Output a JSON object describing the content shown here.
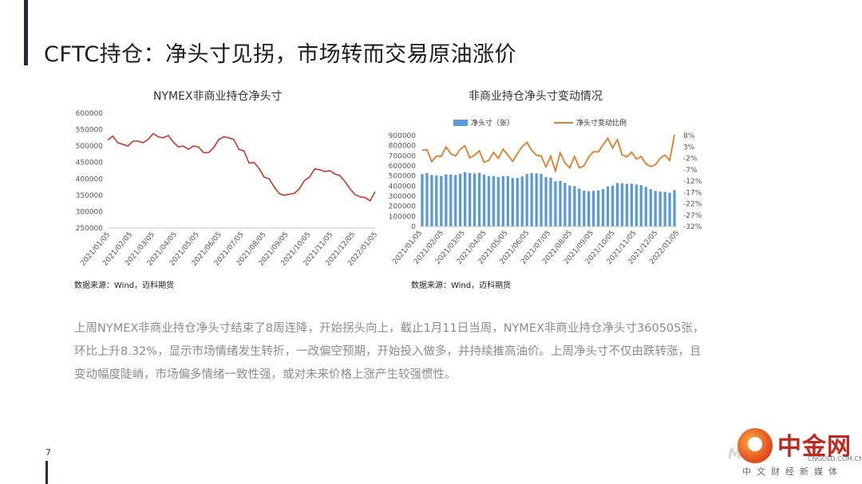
{
  "slide": {
    "title": "CFTC持仓：净头寸见拐，市场转而交易原油涨价",
    "page_number": "7",
    "body_text": "上周NYMEX非商业持仓净头寸结束了8周连降，开始拐头向上，截止1月11日当周，NYMEX非商业持仓净头寸360505张，环比上升8.32%，显示市场情绪发生转折，一改偏空预期，开始投入做多，并持续推高油价。上周净头寸不仅由跌转涨，且变动幅度陡峭，市场偏多情绪一致性强，或对未来价格上涨产生较强惯性。"
  },
  "logo": {
    "name": "中金网",
    "domain": "CNGOLD.COM.CN",
    "slogan": "中文财经新媒体",
    "ghost_text": "M"
  },
  "colors": {
    "line_red": "#c0392b",
    "bar_blue": "#5b9bd5",
    "line_orange": "#e07b2a",
    "accent": "#1f2a44"
  },
  "x_tick_labels": [
    "2021/01/05",
    "2021/02/05",
    "2021/03/05",
    "2021/04/05",
    "2021/05/05",
    "2021/06/05",
    "2021/07/05",
    "2021/08/05",
    "2021/09/05",
    "2021/10/05",
    "2021/11/05",
    "2021/12/05",
    "2022/01/05"
  ],
  "chart_data": [
    {
      "type": "line",
      "title": "NYMEX非商业持仓净头寸",
      "source": "数据来源：Wind，迈科期货",
      "ylim": [
        250000,
        600000
      ],
      "y_ticks": [
        "600000",
        "550000",
        "500000",
        "450000",
        "400000",
        "350000",
        "300000",
        "250000"
      ],
      "x": [
        "2021/01/05",
        "2021/01/12",
        "2021/01/19",
        "2021/01/26",
        "2021/02/02",
        "2021/02/09",
        "2021/02/16",
        "2021/02/23",
        "2021/03/02",
        "2021/03/09",
        "2021/03/16",
        "2021/03/23",
        "2021/03/30",
        "2021/04/06",
        "2021/04/13",
        "2021/04/20",
        "2021/04/27",
        "2021/05/04",
        "2021/05/11",
        "2021/05/18",
        "2021/05/25",
        "2021/06/01",
        "2021/06/08",
        "2021/06/15",
        "2021/06/22",
        "2021/06/29",
        "2021/07/06",
        "2021/07/13",
        "2021/07/20",
        "2021/07/27",
        "2021/08/03",
        "2021/08/10",
        "2021/08/17",
        "2021/08/24",
        "2021/08/31",
        "2021/09/07",
        "2021/09/14",
        "2021/09/21",
        "2021/09/28",
        "2021/10/05",
        "2021/10/12",
        "2021/10/19",
        "2021/10/26",
        "2021/11/02",
        "2021/11/09",
        "2021/11/16",
        "2021/11/23",
        "2021/11/30",
        "2021/12/07",
        "2021/12/14",
        "2021/12/21",
        "2021/12/28",
        "2022/01/04",
        "2022/01/11"
      ],
      "series": [
        {
          "values": [
            518000,
            530000,
            510000,
            505000,
            500000,
            515000,
            515000,
            510000,
            520000,
            538000,
            528000,
            525000,
            532000,
            512000,
            497000,
            500000,
            490000,
            500000,
            497000,
            480000,
            480000,
            495000,
            520000,
            528000,
            525000,
            520000,
            490000,
            485000,
            448000,
            450000,
            432000,
            405000,
            400000,
            375000,
            355000,
            350000,
            353000,
            356000,
            370000,
            395000,
            405000,
            430000,
            428000,
            422000,
            425000,
            415000,
            410000,
            392000,
            370000,
            352000,
            345000,
            343000,
            333000,
            360505
          ]
        }
      ]
    },
    {
      "type": "bar",
      "title": "非商业持仓净头寸变动情况",
      "source": "数据来源：Wind，迈科期货",
      "legend": [
        "净头寸（张）",
        "净头寸变动比例"
      ],
      "legend_position": "top",
      "ylim": [
        0,
        900000
      ],
      "y2lim": [
        -32,
        8
      ],
      "y_ticks": [
        "900000",
        "800000",
        "700000",
        "600000",
        "500000",
        "400000",
        "300000",
        "200000",
        "100000",
        "0"
      ],
      "y2_ticks": [
        "8%",
        "3%",
        "-2%",
        "-7%",
        "-12%",
        "-17%",
        "-22%",
        "-27%",
        "-32%"
      ],
      "series": [
        {
          "name": "净头寸（张）",
          "type": "bar",
          "values": [
            518000,
            530000,
            510000,
            505000,
            500000,
            515000,
            515000,
            510000,
            520000,
            538000,
            528000,
            525000,
            532000,
            512000,
            497000,
            500000,
            490000,
            500000,
            497000,
            480000,
            480000,
            495000,
            520000,
            528000,
            525000,
            520000,
            490000,
            485000,
            448000,
            450000,
            432000,
            405000,
            400000,
            375000,
            355000,
            350000,
            353000,
            356000,
            370000,
            395000,
            405000,
            430000,
            428000,
            422000,
            425000,
            415000,
            410000,
            392000,
            370000,
            352000,
            345000,
            343000,
            333000,
            360505
          ]
        },
        {
          "name": "净头寸变动比例",
          "type": "line",
          "axis": "right",
          "values": [
            1.5,
            1.8,
            -3.5,
            -1.0,
            -1.2,
            3.0,
            0.0,
            -1.0,
            2.0,
            3.5,
            -1.8,
            -0.6,
            1.3,
            -3.8,
            -2.9,
            0.6,
            -2.0,
            2.0,
            -0.6,
            -3.4,
            0.0,
            3.1,
            5.0,
            1.5,
            -0.6,
            -1.0,
            -5.8,
            -1.0,
            -7.6,
            0.4,
            -4.0,
            -6.2,
            -1.2,
            -6.2,
            -5.3,
            -1.4,
            0.9,
            0.8,
            3.9,
            6.8,
            2.5,
            6.2,
            -0.5,
            -1.4,
            0.7,
            -2.4,
            -1.2,
            -4.4,
            -5.6,
            -4.9,
            -2.0,
            -0.6,
            -2.9,
            8.32
          ]
        }
      ]
    }
  ]
}
